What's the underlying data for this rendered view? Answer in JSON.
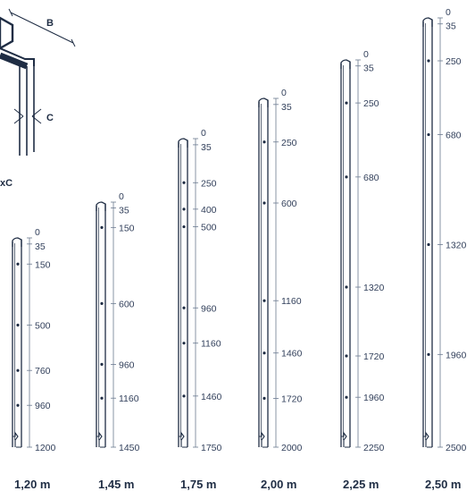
{
  "reference": {
    "label_b": "B",
    "label_c": "C",
    "label_axc": "xC"
  },
  "posts": [
    {
      "title": "1,20 m",
      "ticks": [
        "0",
        "35",
        "150",
        "500",
        "760",
        "960",
        "1200"
      ]
    },
    {
      "title": "1,45 m",
      "ticks": [
        "0",
        "35",
        "150",
        "600",
        "960",
        "1160",
        "1450"
      ]
    },
    {
      "title": "1,75 m",
      "ticks": [
        "0",
        "35",
        "250",
        "400",
        "500",
        "960",
        "1160",
        "1460",
        "1750"
      ]
    },
    {
      "title": "2,00 m",
      "ticks": [
        "0",
        "35",
        "250",
        "600",
        "1160",
        "1460",
        "1720",
        "2000"
      ]
    },
    {
      "title": "2,25 m",
      "ticks": [
        "0",
        "35",
        "250",
        "680",
        "1320",
        "1720",
        "1960",
        "2250"
      ]
    },
    {
      "title": "2,50 m",
      "ticks": [
        "0",
        "35",
        "250",
        "680",
        "1320",
        "1960",
        "2500"
      ]
    }
  ]
}
